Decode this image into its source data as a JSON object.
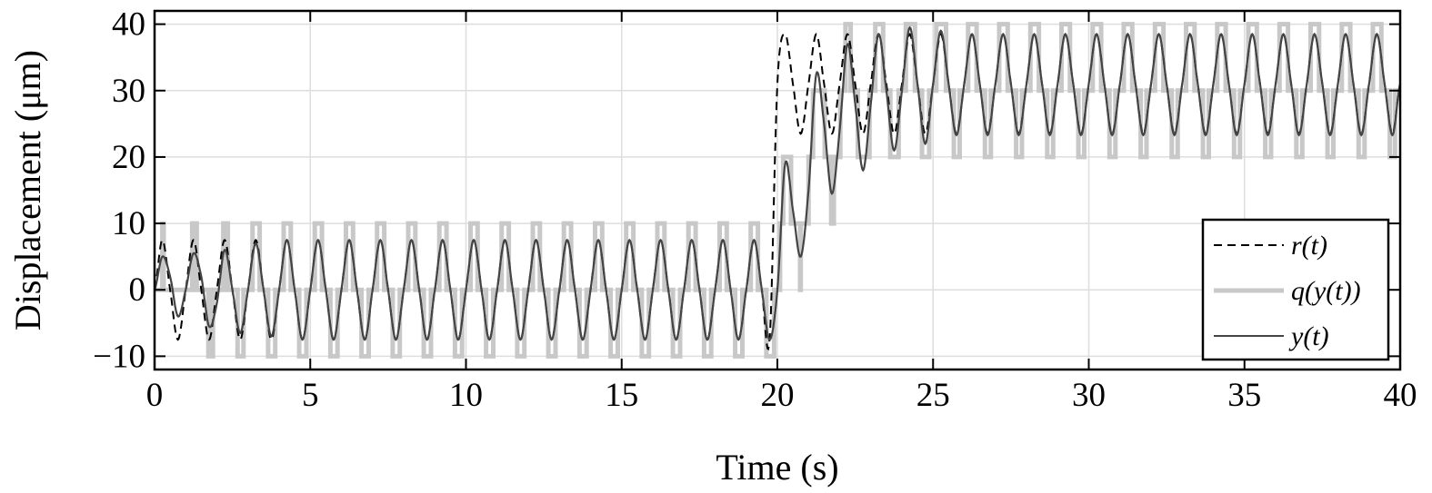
{
  "chart_data": {
    "type": "line",
    "xlabel": "Time (s)",
    "ylabel": "Displacement (μm)",
    "xlim": [
      0,
      40
    ],
    "ylim": [
      -12,
      42
    ],
    "xticks": [
      0,
      5,
      10,
      15,
      20,
      25,
      30,
      35,
      40
    ],
    "xtick_labels": [
      "0",
      "5",
      "10",
      "15",
      "20",
      "25",
      "30",
      "35",
      "40"
    ],
    "yticks": [
      -10,
      0,
      10,
      20,
      30,
      40
    ],
    "ytick_labels": [
      "−10",
      "0",
      "10",
      "20",
      "30",
      "40"
    ],
    "grid": true,
    "legend_position": "bottom-right",
    "quantization_step": 10,
    "t_start": 0,
    "t_step": 0.25,
    "series": [
      {
        "name": "r(t)",
        "style": "dashed",
        "color": "#000000",
        "values": [
          0,
          7.5,
          0,
          -7.5,
          0,
          7.5,
          0,
          -7.5,
          0,
          7.5,
          0,
          -7.5,
          0,
          7.5,
          0,
          -7.5,
          0,
          7.5,
          0,
          -7.5,
          0,
          7.5,
          0,
          -7.5,
          0,
          7.5,
          0,
          -7.5,
          0,
          7.5,
          0,
          -7.5,
          0,
          7.5,
          0,
          -7.5,
          0,
          7.5,
          0,
          -7.5,
          0,
          7.5,
          0,
          -7.5,
          0,
          7.5,
          0,
          -7.5,
          0,
          7.5,
          0,
          -7.5,
          0,
          7.5,
          0,
          -7.5,
          0,
          7.5,
          0,
          -7.5,
          0,
          7.5,
          0,
          -7.5,
          0,
          7.5,
          0,
          -7.5,
          0,
          7.5,
          0,
          -7.5,
          0,
          7.5,
          0,
          -7.5,
          0,
          7.5,
          0,
          -7.5,
          31,
          38.5,
          31,
          23.5,
          31,
          38.5,
          31,
          23.5,
          31,
          38.5,
          31,
          23.5,
          31,
          38.5,
          31,
          23.5,
          31,
          38.5,
          31,
          23.5,
          31,
          38.5,
          31,
          23.5,
          31,
          38.5,
          31,
          23.5,
          31,
          38.5,
          31,
          23.5,
          31,
          38.5,
          31,
          23.5,
          31,
          38.5,
          31,
          23.5,
          31,
          38.5,
          31,
          23.5,
          31,
          38.5,
          31,
          23.5,
          31,
          38.5,
          31,
          23.5,
          31,
          38.5,
          31,
          23.5,
          31,
          38.5,
          31,
          23.5,
          31,
          38.5,
          31,
          23.5,
          31,
          38.5,
          31,
          23.5,
          31,
          38.5,
          31,
          23.5,
          31,
          38.5,
          31,
          23.5,
          31,
          38.5,
          31,
          23.5,
          31
        ]
      },
      {
        "name": "q(y(t))",
        "style": "solid-thick",
        "color": "#c8c8c8",
        "derived_from": "y(t)"
      },
      {
        "name": "y(t)",
        "style": "solid",
        "color": "#444444",
        "values": [
          0,
          5,
          2,
          -4,
          0,
          5.5,
          2,
          -5.5,
          -2,
          6,
          0,
          -6.5,
          0,
          7,
          0,
          -7,
          0,
          7.5,
          0,
          -7.5,
          0,
          7.5,
          0,
          -7.5,
          0,
          7.5,
          0,
          -7.5,
          0,
          7.5,
          0,
          -7.5,
          0,
          7.5,
          0,
          -7.5,
          0,
          7.5,
          0,
          -7.5,
          0,
          7.5,
          0,
          -7.5,
          0,
          7.5,
          0,
          -7.5,
          0,
          7.5,
          0,
          -7.5,
          0,
          7.5,
          0,
          -7.5,
          0,
          7.5,
          0,
          -7.5,
          0,
          7.5,
          0,
          -7.5,
          0,
          7.5,
          0,
          -7.5,
          0,
          7.5,
          0,
          -7.5,
          0,
          7.5,
          0,
          -7.5,
          0,
          7.5,
          0,
          -7.5,
          0,
          19,
          12,
          5,
          15,
          32.5,
          25,
          14.5,
          24,
          37,
          28,
          18,
          28,
          38.5,
          30,
          21,
          30,
          39.5,
          31,
          22,
          31,
          39,
          31,
          23.3,
          31,
          38.5,
          31,
          23.3,
          31,
          38.5,
          31,
          23.3,
          31,
          38.5,
          31,
          23.3,
          31,
          38.5,
          31,
          23.3,
          31,
          38.5,
          31,
          23.3,
          31,
          38.5,
          31,
          23.3,
          31,
          38.5,
          31,
          23.3,
          31,
          38.5,
          31,
          23.3,
          31,
          38.5,
          31,
          23.3,
          31,
          38.5,
          31,
          23.3,
          31,
          38.5,
          31,
          23.3,
          31,
          38.5,
          31,
          23.3,
          31,
          38.5,
          31,
          23.3,
          31,
          38.5,
          31,
          23.3,
          31
        ]
      }
    ]
  }
}
